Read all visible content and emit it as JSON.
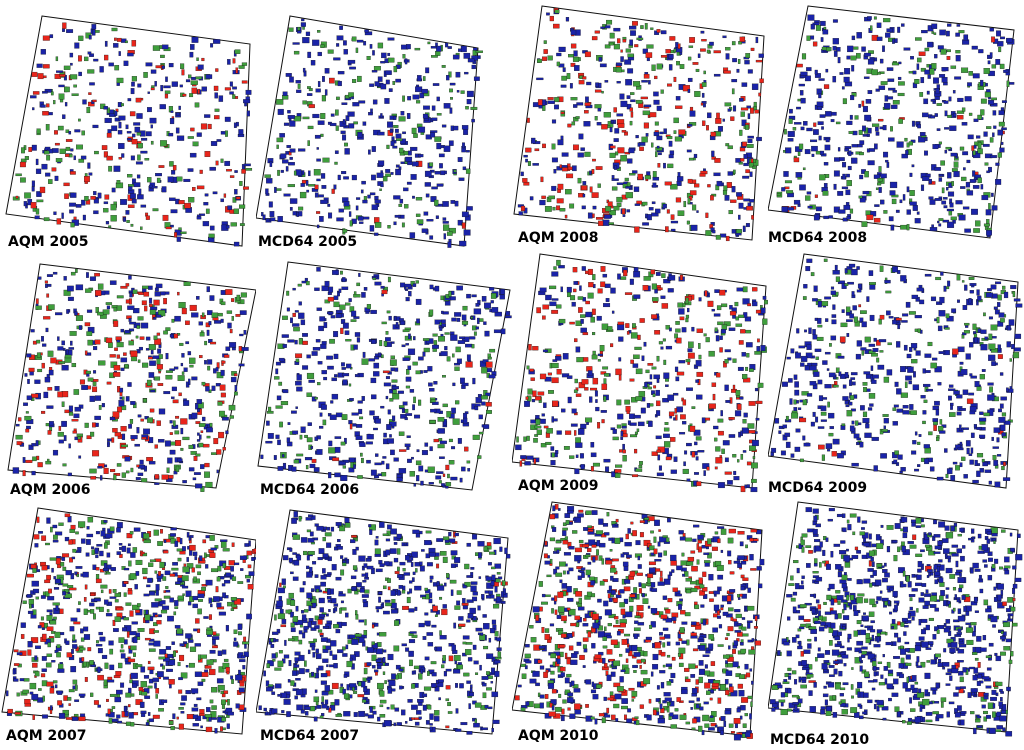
{
  "panels": [
    {
      "label": "AQM 2005",
      "model": "AQM",
      "year": 2005
    },
    {
      "label": "MCD64 2005",
      "model": "MCD64",
      "year": 2005
    },
    {
      "label": "AQM 2008",
      "model": "AQM",
      "year": 2008
    },
    {
      "label": "MCD64 2008",
      "model": "MCD64",
      "year": 2008
    },
    {
      "label": "AQM 2006",
      "model": "AQM",
      "year": 2006
    },
    {
      "label": "MCD64 2006",
      "model": "MCD64",
      "year": 2006
    },
    {
      "label": "AQM 2009",
      "model": "AQM",
      "year": 2009
    },
    {
      "label": "MCD64 2009",
      "model": "MCD64",
      "year": 2009
    },
    {
      "label": "AQM 2007",
      "model": "AQM",
      "year": 2007
    },
    {
      "label": "MCD64 2007",
      "model": "MCD64",
      "year": 2007
    },
    {
      "label": "AQM 2010",
      "model": "AQM",
      "year": 2010
    },
    {
      "label": "MCD64 2010",
      "model": "MCD64",
      "year": 2010
    }
  ],
  "colors": {
    "blue": "#1a23a8",
    "green": "#3f9e3c",
    "red": "#e8251b",
    "outline": "#111111",
    "background": "#ffffff"
  }
}
